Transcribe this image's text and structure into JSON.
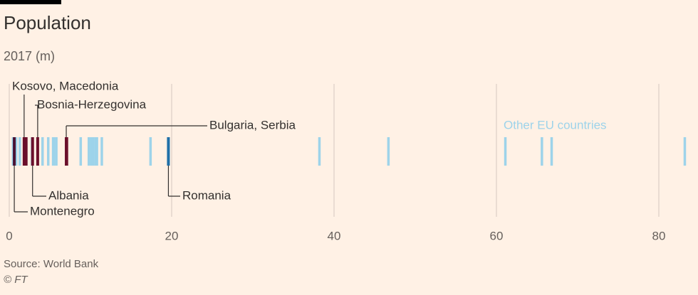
{
  "chart_data": {
    "type": "strip",
    "title": "Population",
    "subtitle": "2017 (m)",
    "source": "Source: World Bank",
    "credit": "© FT",
    "xlim": [
      0,
      84
    ],
    "xticks": [
      0,
      20,
      40,
      60,
      80
    ],
    "grid": true,
    "series": [
      {
        "name": "Other EU countries",
        "color": "#9dd3ea",
        "values": [
          0.46,
          0.6,
          0.85,
          1.3,
          1.9,
          2.07,
          2.8,
          4.1,
          4.8,
          5.4,
          5.5,
          5.8,
          8.8,
          9.8,
          10.1,
          10.3,
          10.6,
          10.8,
          11.4,
          17.4,
          38.2,
          46.7,
          61.1,
          65.6,
          66.8,
          83.2
        ]
      },
      {
        "name": "Romania",
        "color": "#1f6fa8",
        "values": [
          19.6
        ]
      },
      {
        "name": "Montenegro",
        "color": "#4a1233",
        "values": [
          0.62
        ]
      },
      {
        "name": "Kosovo, Macedonia",
        "color": "#6b0f2b",
        "values": [
          1.83,
          2.08
        ]
      },
      {
        "name": "Albania",
        "color": "#6b0f2b",
        "values": [
          2.87
        ]
      },
      {
        "name": "Bosnia-Herzegovina",
        "color": "#6b0f2b",
        "values": [
          3.5
        ]
      },
      {
        "name": "Bulgaria, Serbia",
        "color": "#6b0f2b",
        "values": [
          7.02,
          7.08
        ]
      }
    ]
  }
}
